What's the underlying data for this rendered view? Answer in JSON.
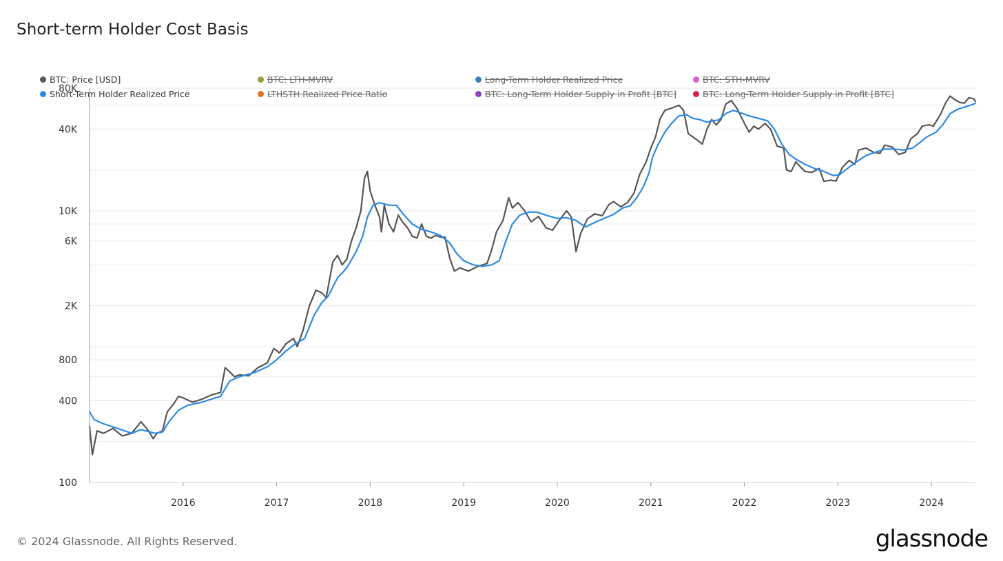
{
  "chart_data": {
    "type": "line",
    "title": "Short-term Holder Cost Basis",
    "scale": "log",
    "ylim": [
      100,
      80000
    ],
    "y_ticks": [
      {
        "value": 100,
        "label": "100"
      },
      {
        "value": 400,
        "label": "400"
      },
      {
        "value": 800,
        "label": "800"
      },
      {
        "value": 2000,
        "label": "2K"
      },
      {
        "value": 6000,
        "label": "6K"
      },
      {
        "value": 10000,
        "label": "10K"
      },
      {
        "value": 40000,
        "label": "40K"
      },
      {
        "value": 80000,
        "label": "80K"
      }
    ],
    "xlim": [
      2015.0,
      2024.47
    ],
    "x_ticks": [
      {
        "value": 2016,
        "label": "2016"
      },
      {
        "value": 2017,
        "label": "2017"
      },
      {
        "value": 2018,
        "label": "2018"
      },
      {
        "value": 2019,
        "label": "2019"
      },
      {
        "value": 2020,
        "label": "2020"
      },
      {
        "value": 2021,
        "label": "2021"
      },
      {
        "value": 2022,
        "label": "2022"
      },
      {
        "value": 2023,
        "label": "2023"
      },
      {
        "value": 2024,
        "label": "2024"
      }
    ],
    "legend": [
      {
        "name": "BTC: Price [USD]",
        "color": "#555555",
        "active": true
      },
      {
        "name": "BTC: LTH-MVRV",
        "color": "#9a9a3a",
        "active": false
      },
      {
        "name": "Long-Term Holder Realized Price",
        "color": "#3a7fc1",
        "active": false
      },
      {
        "name": "BTC: STH-MVRV",
        "color": "#d95fd0",
        "active": false
      },
      {
        "name": "Short-Term Holder Realized Price",
        "color": "#2b8ae6",
        "active": true
      },
      {
        "name": "LTHSTH Realized Price Ratio",
        "color": "#e0701e",
        "active": false
      },
      {
        "name": "BTC: Long-Term Holder Supply in Profit [BTC]",
        "color": "#8a3fc6",
        "active": false
      },
      {
        "name": "BTC: Long-Term Holder Supply in Profit [BTC]",
        "color": "#d8204f",
        "active": false
      }
    ],
    "series": [
      {
        "name": "BTC: Price [USD]",
        "color": "#555555",
        "points": [
          [
            2015.0,
            260
          ],
          [
            2015.03,
            160
          ],
          [
            2015.08,
            240
          ],
          [
            2015.15,
            230
          ],
          [
            2015.25,
            250
          ],
          [
            2015.35,
            220
          ],
          [
            2015.45,
            230
          ],
          [
            2015.55,
            280
          ],
          [
            2015.63,
            240
          ],
          [
            2015.68,
            210
          ],
          [
            2015.72,
            230
          ],
          [
            2015.78,
            240
          ],
          [
            2015.83,
            330
          ],
          [
            2015.9,
            380
          ],
          [
            2015.95,
            430
          ],
          [
            2016.0,
            420
          ],
          [
            2016.1,
            390
          ],
          [
            2016.2,
            410
          ],
          [
            2016.3,
            440
          ],
          [
            2016.4,
            460
          ],
          [
            2016.45,
            700
          ],
          [
            2016.5,
            650
          ],
          [
            2016.55,
            600
          ],
          [
            2016.6,
            620
          ],
          [
            2016.7,
            610
          ],
          [
            2016.8,
            700
          ],
          [
            2016.9,
            760
          ],
          [
            2016.97,
            970
          ],
          [
            2017.03,
            900
          ],
          [
            2017.1,
            1050
          ],
          [
            2017.18,
            1150
          ],
          [
            2017.22,
            1000
          ],
          [
            2017.28,
            1300
          ],
          [
            2017.35,
            2000
          ],
          [
            2017.42,
            2600
          ],
          [
            2017.48,
            2500
          ],
          [
            2017.53,
            2300
          ],
          [
            2017.6,
            4200
          ],
          [
            2017.65,
            4700
          ],
          [
            2017.7,
            4000
          ],
          [
            2017.75,
            4400
          ],
          [
            2017.8,
            6000
          ],
          [
            2017.85,
            7500
          ],
          [
            2017.9,
            10000
          ],
          [
            2017.94,
            17500
          ],
          [
            2017.97,
            19500
          ],
          [
            2018.0,
            14000
          ],
          [
            2018.05,
            11000
          ],
          [
            2018.1,
            9000
          ],
          [
            2018.12,
            7000
          ],
          [
            2018.15,
            11000
          ],
          [
            2018.2,
            8000
          ],
          [
            2018.25,
            7000
          ],
          [
            2018.3,
            9300
          ],
          [
            2018.35,
            8200
          ],
          [
            2018.4,
            7500
          ],
          [
            2018.45,
            6500
          ],
          [
            2018.5,
            6300
          ],
          [
            2018.55,
            8000
          ],
          [
            2018.6,
            6500
          ],
          [
            2018.65,
            6300
          ],
          [
            2018.7,
            6600
          ],
          [
            2018.75,
            6400
          ],
          [
            2018.8,
            6400
          ],
          [
            2018.85,
            4500
          ],
          [
            2018.9,
            3600
          ],
          [
            2018.96,
            3800
          ],
          [
            2019.05,
            3600
          ],
          [
            2019.15,
            3900
          ],
          [
            2019.25,
            4100
          ],
          [
            2019.3,
            5200
          ],
          [
            2019.35,
            7000
          ],
          [
            2019.42,
            8500
          ],
          [
            2019.48,
            12500
          ],
          [
            2019.52,
            10500
          ],
          [
            2019.58,
            11500
          ],
          [
            2019.65,
            10000
          ],
          [
            2019.72,
            8300
          ],
          [
            2019.8,
            9100
          ],
          [
            2019.88,
            7500
          ],
          [
            2019.95,
            7200
          ],
          [
            2020.02,
            8500
          ],
          [
            2020.1,
            10000
          ],
          [
            2020.15,
            9000
          ],
          [
            2020.2,
            5000
          ],
          [
            2020.25,
            6800
          ],
          [
            2020.32,
            8700
          ],
          [
            2020.4,
            9500
          ],
          [
            2020.48,
            9200
          ],
          [
            2020.55,
            11100
          ],
          [
            2020.6,
            11700
          ],
          [
            2020.68,
            10700
          ],
          [
            2020.75,
            11500
          ],
          [
            2020.82,
            13500
          ],
          [
            2020.88,
            18500
          ],
          [
            2020.95,
            23000
          ],
          [
            2021.0,
            29000
          ],
          [
            2021.05,
            35000
          ],
          [
            2021.1,
            48000
          ],
          [
            2021.15,
            55000
          ],
          [
            2021.22,
            57000
          ],
          [
            2021.3,
            60000
          ],
          [
            2021.35,
            55000
          ],
          [
            2021.4,
            37000
          ],
          [
            2021.45,
            35000
          ],
          [
            2021.5,
            33000
          ],
          [
            2021.55,
            31000
          ],
          [
            2021.6,
            40000
          ],
          [
            2021.65,
            47000
          ],
          [
            2021.7,
            43000
          ],
          [
            2021.75,
            47000
          ],
          [
            2021.8,
            61000
          ],
          [
            2021.86,
            65000
          ],
          [
            2021.92,
            57000
          ],
          [
            2021.98,
            47000
          ],
          [
            2022.05,
            38000
          ],
          [
            2022.1,
            42000
          ],
          [
            2022.15,
            40000
          ],
          [
            2022.22,
            44000
          ],
          [
            2022.28,
            40000
          ],
          [
            2022.35,
            30000
          ],
          [
            2022.42,
            29000
          ],
          [
            2022.45,
            20000
          ],
          [
            2022.5,
            19500
          ],
          [
            2022.55,
            23000
          ],
          [
            2022.6,
            21000
          ],
          [
            2022.65,
            19500
          ],
          [
            2022.72,
            19200
          ],
          [
            2022.8,
            20500
          ],
          [
            2022.85,
            16500
          ],
          [
            2022.92,
            16800
          ],
          [
            2022.98,
            16600
          ],
          [
            2023.05,
            21000
          ],
          [
            2023.12,
            23500
          ],
          [
            2023.18,
            22000
          ],
          [
            2023.22,
            28000
          ],
          [
            2023.3,
            29000
          ],
          [
            2023.38,
            27000
          ],
          [
            2023.45,
            26500
          ],
          [
            2023.5,
            30500
          ],
          [
            2023.58,
            29500
          ],
          [
            2023.65,
            26000
          ],
          [
            2023.72,
            27000
          ],
          [
            2023.78,
            34000
          ],
          [
            2023.85,
            37000
          ],
          [
            2023.9,
            42000
          ],
          [
            2023.97,
            43000
          ],
          [
            2024.02,
            42000
          ],
          [
            2024.1,
            52000
          ],
          [
            2024.15,
            62000
          ],
          [
            2024.2,
            70000
          ],
          [
            2024.25,
            66000
          ],
          [
            2024.3,
            63000
          ],
          [
            2024.35,
            62000
          ],
          [
            2024.4,
            68000
          ],
          [
            2024.45,
            67000
          ],
          [
            2024.47,
            64000
          ]
        ]
      },
      {
        "name": "Short-Term Holder Realized Price",
        "color": "#2b8ae6",
        "points": [
          [
            2015.0,
            330
          ],
          [
            2015.05,
            290
          ],
          [
            2015.15,
            270
          ],
          [
            2015.3,
            250
          ],
          [
            2015.45,
            230
          ],
          [
            2015.55,
            245
          ],
          [
            2015.7,
            230
          ],
          [
            2015.78,
            235
          ],
          [
            2015.85,
            280
          ],
          [
            2015.95,
            340
          ],
          [
            2016.05,
            370
          ],
          [
            2016.2,
            390
          ],
          [
            2016.3,
            410
          ],
          [
            2016.4,
            430
          ],
          [
            2016.5,
            560
          ],
          [
            2016.6,
            600
          ],
          [
            2016.75,
            640
          ],
          [
            2016.9,
            710
          ],
          [
            2017.0,
            800
          ],
          [
            2017.1,
            930
          ],
          [
            2017.2,
            1050
          ],
          [
            2017.3,
            1150
          ],
          [
            2017.4,
            1700
          ],
          [
            2017.48,
            2100
          ],
          [
            2017.55,
            2350
          ],
          [
            2017.65,
            3200
          ],
          [
            2017.75,
            3800
          ],
          [
            2017.85,
            5000
          ],
          [
            2017.92,
            6500
          ],
          [
            2017.97,
            9000
          ],
          [
            2018.03,
            11000
          ],
          [
            2018.1,
            11500
          ],
          [
            2018.2,
            11000
          ],
          [
            2018.28,
            11000
          ],
          [
            2018.35,
            9500
          ],
          [
            2018.45,
            8000
          ],
          [
            2018.55,
            7300
          ],
          [
            2018.65,
            7000
          ],
          [
            2018.75,
            6600
          ],
          [
            2018.85,
            5800
          ],
          [
            2018.93,
            4800
          ],
          [
            2019.0,
            4300
          ],
          [
            2019.1,
            4000
          ],
          [
            2019.2,
            3900
          ],
          [
            2019.3,
            4000
          ],
          [
            2019.38,
            4300
          ],
          [
            2019.45,
            6000
          ],
          [
            2019.52,
            8000
          ],
          [
            2019.6,
            9300
          ],
          [
            2019.7,
            9800
          ],
          [
            2019.78,
            9800
          ],
          [
            2019.9,
            9200
          ],
          [
            2020.0,
            8800
          ],
          [
            2020.1,
            8900
          ],
          [
            2020.2,
            8500
          ],
          [
            2020.3,
            7600
          ],
          [
            2020.4,
            8200
          ],
          [
            2020.5,
            8800
          ],
          [
            2020.6,
            9400
          ],
          [
            2020.7,
            10500
          ],
          [
            2020.78,
            10900
          ],
          [
            2020.85,
            12500
          ],
          [
            2020.92,
            15000
          ],
          [
            2020.98,
            19000
          ],
          [
            2021.02,
            25000
          ],
          [
            2021.08,
            31000
          ],
          [
            2021.15,
            38000
          ],
          [
            2021.22,
            44000
          ],
          [
            2021.3,
            50000
          ],
          [
            2021.38,
            51000
          ],
          [
            2021.45,
            48000
          ],
          [
            2021.52,
            47000
          ],
          [
            2021.6,
            45000
          ],
          [
            2021.65,
            46000
          ],
          [
            2021.72,
            46500
          ],
          [
            2021.8,
            52000
          ],
          [
            2021.88,
            55000
          ],
          [
            2021.95,
            53000
          ],
          [
            2022.05,
            50000
          ],
          [
            2022.15,
            48000
          ],
          [
            2022.25,
            46000
          ],
          [
            2022.32,
            40000
          ],
          [
            2022.4,
            31000
          ],
          [
            2022.48,
            26000
          ],
          [
            2022.55,
            24000
          ],
          [
            2022.65,
            22000
          ],
          [
            2022.75,
            20500
          ],
          [
            2022.85,
            19500
          ],
          [
            2022.95,
            18200
          ],
          [
            2023.02,
            18500
          ],
          [
            2023.1,
            20500
          ],
          [
            2023.2,
            23000
          ],
          [
            2023.3,
            25500
          ],
          [
            2023.4,
            27000
          ],
          [
            2023.5,
            28500
          ],
          [
            2023.6,
            28500
          ],
          [
            2023.7,
            28000
          ],
          [
            2023.8,
            29000
          ],
          [
            2023.88,
            32000
          ],
          [
            2023.95,
            35000
          ],
          [
            2024.05,
            38000
          ],
          [
            2024.12,
            43000
          ],
          [
            2024.2,
            52000
          ],
          [
            2024.28,
            56000
          ],
          [
            2024.35,
            58000
          ],
          [
            2024.42,
            60000
          ],
          [
            2024.47,
            62000
          ]
        ]
      }
    ]
  },
  "footer": {
    "copyright": "© 2024 Glassnode. All Rights Reserved.",
    "brand": "glassnode"
  }
}
